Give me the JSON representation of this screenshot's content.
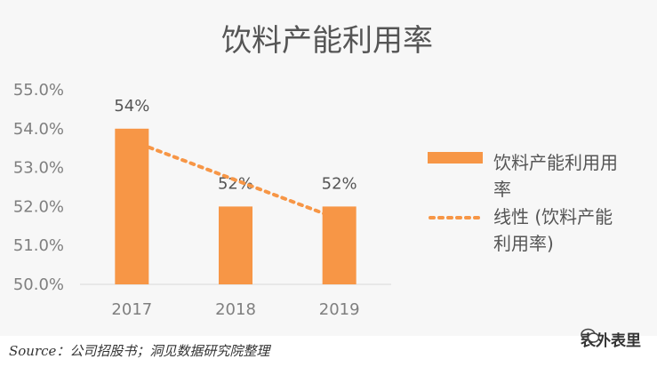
{
  "chart_data": {
    "type": "bar",
    "title": "饮料产能利用率",
    "categories": [
      "2017",
      "2018",
      "2019"
    ],
    "series": [
      {
        "name": "饮料产能利用率",
        "values": [
          54,
          52,
          52
        ],
        "color": "#f79646"
      }
    ],
    "data_labels": [
      "54%",
      "52%",
      "52%"
    ],
    "trendline": {
      "name": "线性 (饮料产能利用率)",
      "style": "dotted",
      "color": "#f79646",
      "start": 53.6,
      "end": 51.8
    },
    "y_ticks": [
      "50.0%",
      "51.0%",
      "52.0%",
      "53.0%",
      "54.0%",
      "55.0%"
    ],
    "ylim": [
      50,
      55
    ],
    "grid": false,
    "legend_position": "right",
    "legend": {
      "bar_lines": [
        "饮料产能利用用",
        "率"
      ],
      "trend_lines": [
        "线性 (饮料产能",
        "利用率)"
      ]
    }
  },
  "source": "Source：公司招股书；洞见数据研究院整理",
  "watermark": {
    "icon": "wechat-icon",
    "text": "表外表里"
  }
}
